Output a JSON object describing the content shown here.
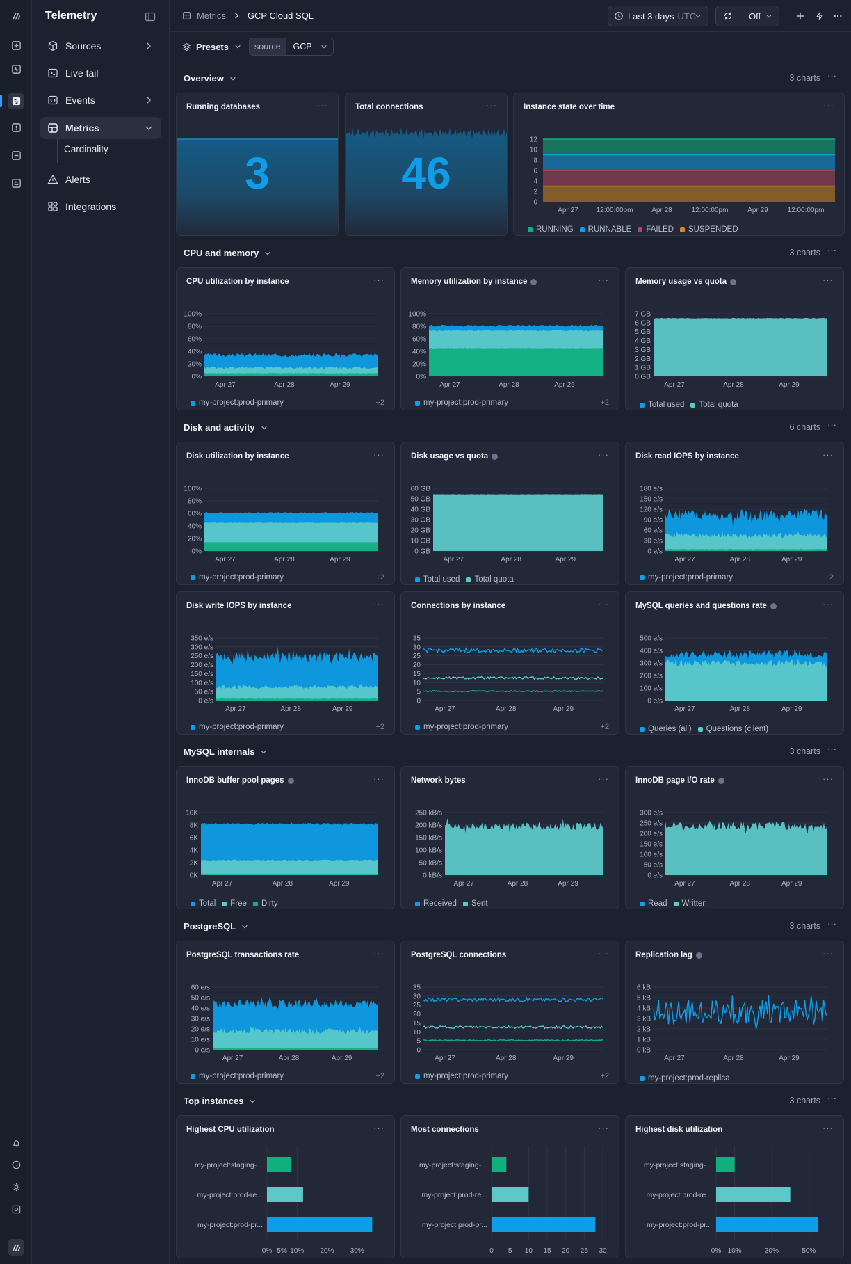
{
  "app": {
    "title": "Telemetry"
  },
  "sidebar": {
    "items": [
      {
        "label": "Sources",
        "icon": "cube-icon"
      },
      {
        "label": "Live tail",
        "icon": "terminal-icon"
      },
      {
        "label": "Events",
        "icon": "code-icon"
      },
      {
        "label": "Metrics",
        "icon": "grid-icon"
      },
      {
        "label": "Alerts",
        "icon": "warning-icon"
      },
      {
        "label": "Integrations",
        "icon": "puzzle-icon"
      }
    ],
    "subitems": [
      {
        "label": "Cardinality"
      }
    ]
  },
  "breadcrumb": {
    "root": "Metrics",
    "current": "GCP Cloud SQL"
  },
  "timepicker": {
    "label": "Last 3 days",
    "tz": "UTC"
  },
  "refresh": {
    "label": "Off"
  },
  "toolbar": {
    "presets": "Presets",
    "filter_key": "source",
    "filter_value": "GCP"
  },
  "colors": {
    "blue": "#0e9de6",
    "teal": "#5cc8c8",
    "green": "#10b07e",
    "red": "#b4455e",
    "orange": "#d4891c",
    "grid": "#2e3546"
  },
  "sections": [
    {
      "title": "Overview",
      "count": "3 charts"
    },
    {
      "title": "CPU and memory",
      "count": "3 charts"
    },
    {
      "title": "Disk and activity",
      "count": "6 charts"
    },
    {
      "title": "MySQL internals",
      "count": "3 charts"
    },
    {
      "title": "PostgreSQL",
      "count": "3 charts"
    },
    {
      "title": "Top instances",
      "count": "3 charts"
    }
  ],
  "overview": {
    "running_title": "Running databases",
    "running_value": "3",
    "connections_title": "Total connections",
    "connections_value": "46",
    "state_title": "Instance state over time",
    "state_chart": {
      "type": "area",
      "y_ticks": [
        "12",
        "10",
        "8",
        "6",
        "4",
        "2",
        "0"
      ],
      "x_ticks": [
        "Apr 27",
        "12:00:00pm",
        "Apr 28",
        "12:00:00pm",
        "Apr 29",
        "12:00:00pm"
      ],
      "series": [
        {
          "name": "RUNNING",
          "value": 3
        },
        {
          "name": "RUNNABLE",
          "value": 3
        },
        {
          "name": "FAILED",
          "value": 3
        },
        {
          "name": "SUSPENDED",
          "value": 3
        }
      ]
    }
  },
  "charts": [
    {
      "title": "CPU utilization by instance",
      "y_ticks": [
        "100%",
        "80%",
        "60%",
        "40%",
        "20%",
        "0%"
      ],
      "x_ticks": [
        "Apr 27",
        "Apr 28",
        "Apr 29"
      ],
      "legend": [
        "my-project:prod-primary"
      ],
      "more": "+2"
    },
    {
      "title": "Memory utilization by instance",
      "info": true,
      "y_ticks": [
        "100%",
        "80%",
        "60%",
        "40%",
        "20%",
        "0%"
      ],
      "x_ticks": [
        "Apr 27",
        "Apr 28",
        "Apr 29"
      ],
      "legend": [
        "my-project:prod-primary"
      ],
      "more": "+2"
    },
    {
      "title": "Memory usage vs quota",
      "info": true,
      "y_ticks": [
        "7 GB",
        "6 GB",
        "5 GB",
        "4 GB",
        "3 GB",
        "2 GB",
        "1 GB",
        "0 GB"
      ],
      "x_ticks": [
        "Apr 27",
        "Apr 28",
        "Apr 29"
      ],
      "legend": [
        "Total used",
        "Total quota"
      ]
    },
    {
      "title": "Disk utilization by instance",
      "y_ticks": [
        "100%",
        "80%",
        "60%",
        "40%",
        "20%",
        "0%"
      ],
      "x_ticks": [
        "Apr 27",
        "Apr 28",
        "Apr 29"
      ],
      "legend": [
        "my-project:prod-primary"
      ],
      "more": "+2"
    },
    {
      "title": "Disk usage vs quota",
      "info": true,
      "y_ticks": [
        "60 GB",
        "50 GB",
        "40 GB",
        "30 GB",
        "20 GB",
        "10 GB",
        "0 GB"
      ],
      "x_ticks": [
        "Apr 27",
        "Apr 28",
        "Apr 29"
      ],
      "legend": [
        "Total used",
        "Total quota"
      ]
    },
    {
      "title": "Disk read IOPS by instance",
      "y_ticks": [
        "180 e/s",
        "150 e/s",
        "120 e/s",
        "90 e/s",
        "60 e/s",
        "30 e/s",
        "0 e/s"
      ],
      "x_ticks": [
        "Apr 27",
        "Apr 28",
        "Apr 29"
      ],
      "legend": [
        "my-project:prod-primary"
      ],
      "more": "+2"
    },
    {
      "title": "Disk write IOPS by instance",
      "y_ticks": [
        "350 e/s",
        "300 e/s",
        "250 e/s",
        "200 e/s",
        "150 e/s",
        "100 e/s",
        "50 e/s",
        "0 e/s"
      ],
      "x_ticks": [
        "Apr 27",
        "Apr 28",
        "Apr 29"
      ],
      "legend": [
        "my-project:prod-primary"
      ],
      "more": "+2"
    },
    {
      "title": "Connections by instance",
      "y_ticks": [
        "35",
        "30",
        "25",
        "20",
        "15",
        "10",
        "5",
        "0"
      ],
      "x_ticks": [
        "Apr 27",
        "Apr 28",
        "Apr 29"
      ],
      "legend": [
        "my-project:prod-primary"
      ],
      "more": "+2"
    },
    {
      "title": "MySQL queries and questions rate",
      "info": true,
      "y_ticks": [
        "500 e/s",
        "400 e/s",
        "300 e/s",
        "200 e/s",
        "100 e/s",
        "0 e/s"
      ],
      "x_ticks": [
        "Apr 27",
        "Apr 28",
        "Apr 29"
      ],
      "legend": [
        "Queries (all)",
        "Questions (client)"
      ]
    },
    {
      "title": "InnoDB buffer pool pages",
      "info": true,
      "y_ticks": [
        "10K",
        "8K",
        "6K",
        "4K",
        "2K",
        "0K"
      ],
      "x_ticks": [
        "Apr 27",
        "Apr 28",
        "Apr 29"
      ],
      "legend": [
        "Total",
        "Free",
        "Dirty"
      ]
    },
    {
      "title": "Network bytes",
      "y_ticks": [
        "250 kB/s",
        "200 kB/s",
        "150 kB/s",
        "100 kB/s",
        "50 kB/s",
        "0 kB/s"
      ],
      "x_ticks": [
        "Apr 27",
        "Apr 28",
        "Apr 29"
      ],
      "legend": [
        "Received",
        "Sent"
      ]
    },
    {
      "title": "InnoDB page I/O rate",
      "info": true,
      "y_ticks": [
        "300 e/s",
        "250 e/s",
        "200 e/s",
        "150 e/s",
        "100 e/s",
        "50 e/s",
        "0 e/s"
      ],
      "x_ticks": [
        "Apr 27",
        "Apr 28",
        "Apr 29"
      ],
      "legend": [
        "Read",
        "Written"
      ]
    },
    {
      "title": "PostgreSQL transactions rate",
      "y_ticks": [
        "60 e/s",
        "50 e/s",
        "40 e/s",
        "30 e/s",
        "20 e/s",
        "10 e/s",
        "0 e/s"
      ],
      "x_ticks": [
        "Apr 27",
        "Apr 28",
        "Apr 29"
      ],
      "legend": [
        "my-project:prod-primary"
      ],
      "more": "+2"
    },
    {
      "title": "PostgreSQL connections",
      "y_ticks": [
        "35",
        "30",
        "25",
        "20",
        "15",
        "10",
        "5",
        "0"
      ],
      "x_ticks": [
        "Apr 27",
        "Apr 28",
        "Apr 29"
      ],
      "legend": [
        "my-project:prod-primary"
      ],
      "more": "+2"
    },
    {
      "title": "Replication lag",
      "info": true,
      "y_ticks": [
        "6 kB",
        "5 kB",
        "4 kB",
        "3 kB",
        "2 kB",
        "1 kB",
        "0 kB"
      ],
      "x_ticks": [
        "Apr 27",
        "Apr 28",
        "Apr 29"
      ],
      "legend": [
        "my-project:prod-replica"
      ]
    }
  ],
  "chart_data": [
    {
      "type": "bar",
      "title": "Highest CPU utilization",
      "categories": [
        "my-project:staging-...",
        "my-project:prod-re...",
        "my-project:prod-pr..."
      ],
      "values": [
        8,
        12,
        35
      ],
      "x_ticks": [
        "0%",
        "5%",
        "10%",
        "20%",
        "30%"
      ],
      "xlim": [
        0,
        37
      ]
    },
    {
      "type": "bar",
      "title": "Most connections",
      "categories": [
        "my-project:staging-...",
        "my-project:prod-re...",
        "my-project:prod-pr..."
      ],
      "values": [
        4,
        10,
        28
      ],
      "x_ticks": [
        "0",
        "5",
        "10",
        "15",
        "20",
        "25",
        "30"
      ],
      "xlim": [
        0,
        30
      ]
    },
    {
      "type": "bar",
      "title": "Highest disk utilization",
      "categories": [
        "my-project:staging-...",
        "my-project:prod-re...",
        "my-project:prod-pr..."
      ],
      "values": [
        10,
        40,
        55
      ],
      "x_ticks": [
        "0%",
        "10%",
        "30%",
        "50%"
      ],
      "xlim": [
        0,
        60
      ]
    }
  ]
}
